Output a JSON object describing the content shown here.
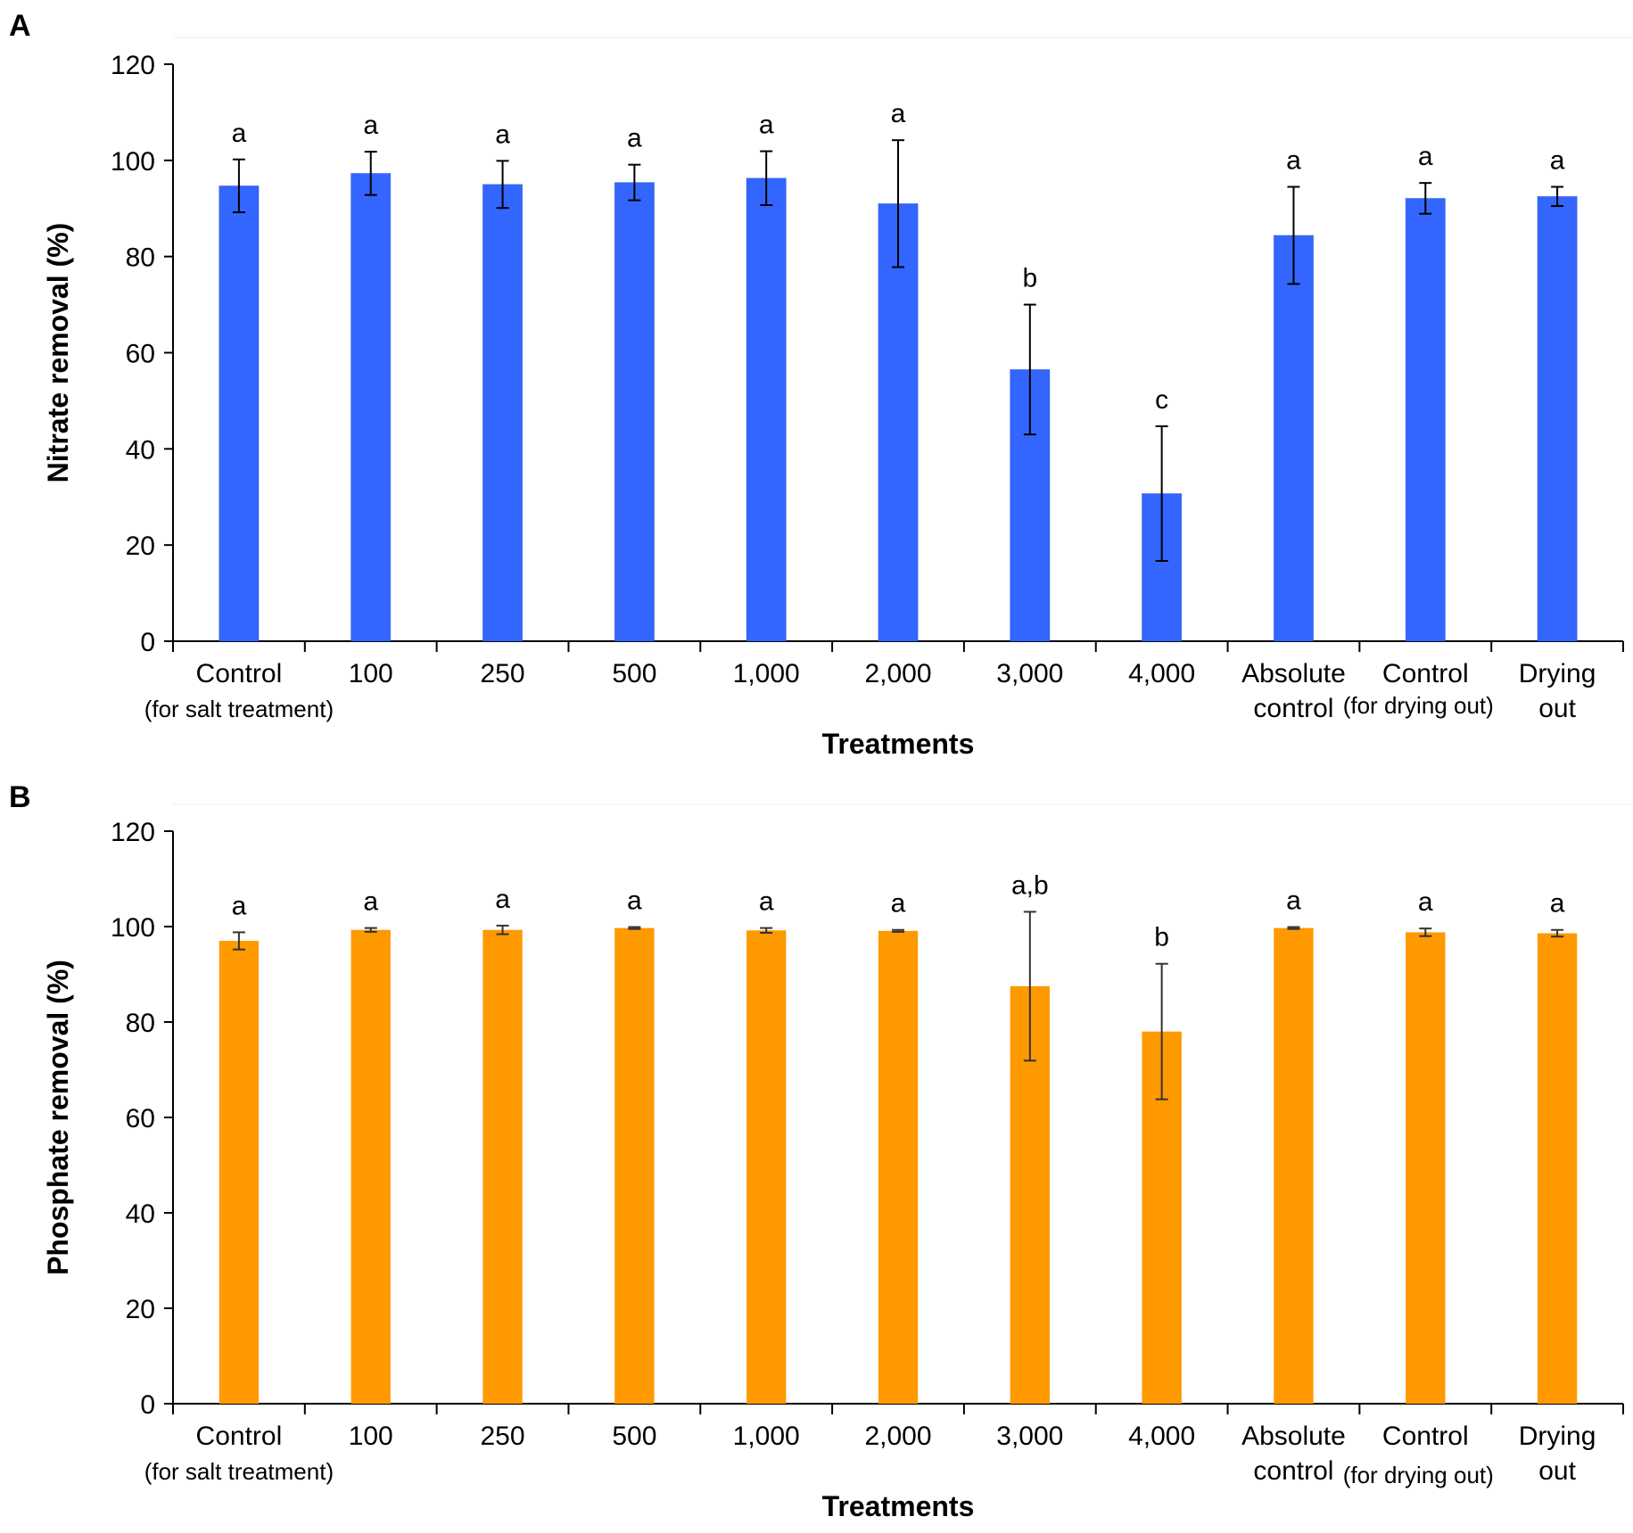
{
  "chart_data": [
    {
      "panel": "A",
      "type": "bar",
      "color": "#3366FF",
      "xlabel": "Treatments",
      "ylabel": "Nitrate removal (%)",
      "ylim": [
        0,
        120
      ],
      "yticks": [
        0,
        20,
        40,
        60,
        80,
        100,
        120
      ],
      "categories": [
        [
          "Control",
          "(for salt treatment)"
        ],
        [
          "100"
        ],
        [
          "250"
        ],
        [
          "500"
        ],
        [
          "1,000"
        ],
        [
          "2,000"
        ],
        [
          "3,000"
        ],
        [
          "4,000"
        ],
        [
          "Absolute",
          "control"
        ],
        [
          "Control",
          "(for drying out)"
        ],
        [
          "Drying",
          "out"
        ]
      ],
      "values": [
        94.7,
        97.3,
        95.0,
        95.4,
        96.3,
        91.0,
        56.5,
        30.7,
        84.4,
        92.1,
        92.5
      ],
      "errors": [
        5.5,
        4.5,
        4.9,
        3.7,
        5.6,
        13.2,
        13.5,
        14.0,
        10.1,
        3.2,
        2.0
      ],
      "significance": [
        "a",
        "a",
        "a",
        "a",
        "a",
        "a",
        "b",
        "c",
        "a",
        "a",
        "a"
      ]
    },
    {
      "panel": "B",
      "type": "bar",
      "color": "#FF9900",
      "xlabel": "Treatments",
      "ylabel": "Phosphate removal (%)",
      "ylim": [
        0,
        120
      ],
      "yticks": [
        0,
        20,
        40,
        60,
        80,
        100,
        120
      ],
      "categories": [
        [
          "Control",
          "(for salt treatment)"
        ],
        [
          "100"
        ],
        [
          "250"
        ],
        [
          "500"
        ],
        [
          "1,000"
        ],
        [
          "2,000"
        ],
        [
          "3,000"
        ],
        [
          "4,000"
        ],
        [
          "Absolute",
          "control"
        ],
        [
          "Control",
          "(for drying out)"
        ],
        [
          "Drying",
          "out"
        ]
      ],
      "values": [
        97.0,
        99.3,
        99.3,
        99.7,
        99.2,
        99.1,
        87.5,
        78.0,
        99.7,
        98.8,
        98.6
      ],
      "errors": [
        1.8,
        0.4,
        0.9,
        0.2,
        0.5,
        0.2,
        15.6,
        14.2,
        0.2,
        0.8,
        0.7
      ],
      "significance": [
        "a",
        "a",
        "a",
        "a",
        "a",
        "a",
        "a,b",
        "b",
        "a",
        "a",
        "a"
      ]
    }
  ]
}
